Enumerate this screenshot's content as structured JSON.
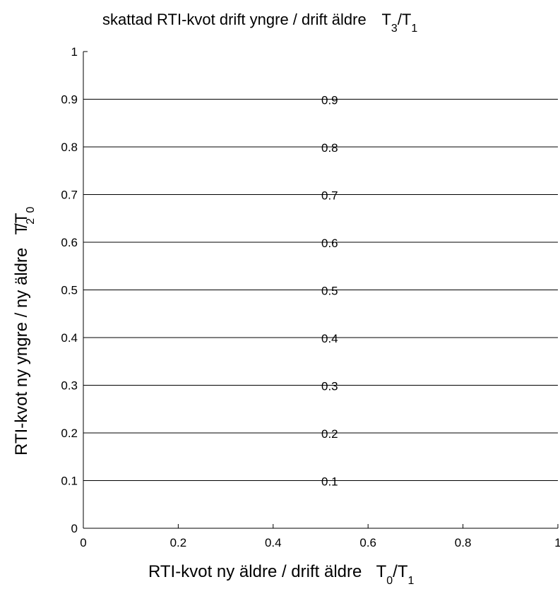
{
  "chart_data": {
    "type": "line",
    "title": {
      "main": "skattad RTI-kvot drift yngre / drift äldre",
      "sym1": "T",
      "sub1": "3",
      "sep": "/T",
      "sub2": "1"
    },
    "xlabel": {
      "main": "RTI-kvot ny äldre / drift äldre",
      "sym1": "T",
      "sub1": "0",
      "sep": "/T",
      "sub2": "1"
    },
    "ylabel": {
      "main": "RTI-kvot ny yngre / ny äldre",
      "sym1": "T",
      "sub1": "2",
      "sep": "/T",
      "sub2": "0"
    },
    "xlim": [
      0,
      1
    ],
    "ylim": [
      0,
      1
    ],
    "xticks": [
      "0",
      "0.2",
      "0.4",
      "0.6",
      "0.8",
      "1"
    ],
    "yticks": [
      "0",
      "0.1",
      "0.2",
      "0.3",
      "0.4",
      "0.5",
      "0.6",
      "0.7",
      "0.8",
      "0.9",
      "1"
    ],
    "grid": false,
    "contours": [
      {
        "level": "0.1",
        "y": 0.1
      },
      {
        "level": "0.2",
        "y": 0.2
      },
      {
        "level": "0.3",
        "y": 0.3
      },
      {
        "level": "0.4",
        "y": 0.4
      },
      {
        "level": "0.5",
        "y": 0.5
      },
      {
        "level": "0.6",
        "y": 0.6
      },
      {
        "level": "0.7",
        "y": 0.7
      },
      {
        "level": "0.8",
        "y": 0.8
      },
      {
        "level": "0.9",
        "y": 0.9
      }
    ],
    "contour_label_x": 0.5,
    "colors": {
      "line": "#000000",
      "background": "#ffffff"
    }
  }
}
